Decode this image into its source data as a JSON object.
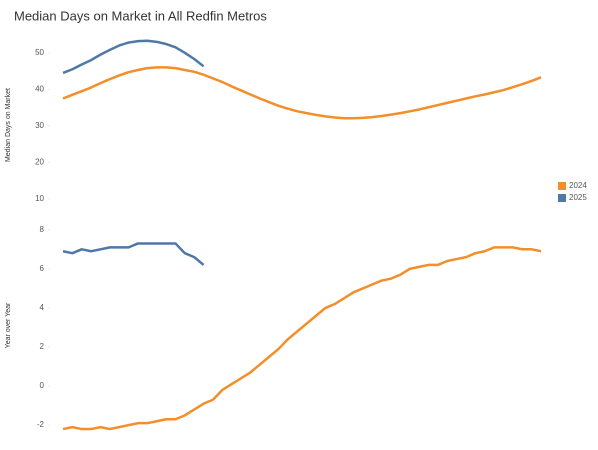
{
  "chart_data": [
    {
      "type": "line",
      "title": "Median Days on Market in  All Redfin Metros",
      "y_label": "Median Days on Market",
      "ylim": [
        7,
        53.5
      ],
      "yticks": [
        10,
        20,
        30,
        40,
        50
      ],
      "legend": "right",
      "series": [
        {
          "name": "2024",
          "color": "#f28e2b",
          "values": [
            37.5,
            38.5,
            39.5,
            40.5,
            41.7,
            42.8,
            43.8,
            44.7,
            45.3,
            45.8,
            46,
            46,
            45.8,
            45.3,
            44.8,
            44,
            43,
            42,
            40.8,
            39.7,
            38.6,
            37.5,
            36.5,
            35.5,
            34.7,
            34,
            33.5,
            33,
            32.6,
            32.3,
            32.1,
            32.1,
            32.2,
            32.4,
            32.7,
            33.1,
            33.5,
            34,
            34.5,
            35.1,
            35.7,
            36.3,
            36.9,
            37.5,
            38.1,
            38.6,
            39.2,
            39.8,
            40.6,
            41.4,
            42.3,
            43.3
          ]
        },
        {
          "name": "2025",
          "color": "#4e79a7",
          "values": [
            44.5,
            45.5,
            46.8,
            48,
            49.5,
            50.8,
            52,
            52.8,
            53.2,
            53.3,
            53,
            52.4,
            51.5,
            50,
            48.3,
            46.3
          ]
        }
      ]
    },
    {
      "type": "line",
      "y_label": "Year over Year",
      "ylim": [
        -2.3,
        8.5
      ],
      "yticks": [
        -2,
        0,
        2,
        4,
        6,
        8
      ],
      "series": [
        {
          "color": "#f28e2b",
          "values": [
            -2.2,
            -2.1,
            -2.2,
            -2.2,
            -2.1,
            -2.2,
            -2.1,
            -2,
            -1.9,
            -1.9,
            -1.8,
            -1.7,
            -1.7,
            -1.5,
            -1.2,
            -0.9,
            -0.7,
            -0.2,
            0.1,
            0.4,
            0.7,
            1.1,
            1.5,
            1.9,
            2.4,
            2.8,
            3.2,
            3.6,
            4,
            4.2,
            4.5,
            4.8,
            5,
            5.2,
            5.4,
            5.5,
            5.7,
            6,
            6.1,
            6.2,
            6.2,
            6.4,
            6.5,
            6.6,
            6.8,
            6.9,
            7.1,
            7.1,
            7.1,
            7,
            7,
            6.9
          ]
        },
        {
          "color": "#4e79a7",
          "values": [
            6.9,
            6.8,
            7,
            6.9,
            7,
            7.1,
            7.1,
            7.1,
            7.3,
            7.3,
            7.3,
            7.3,
            7.3,
            6.8,
            6.6,
            6.2
          ]
        }
      ]
    }
  ]
}
